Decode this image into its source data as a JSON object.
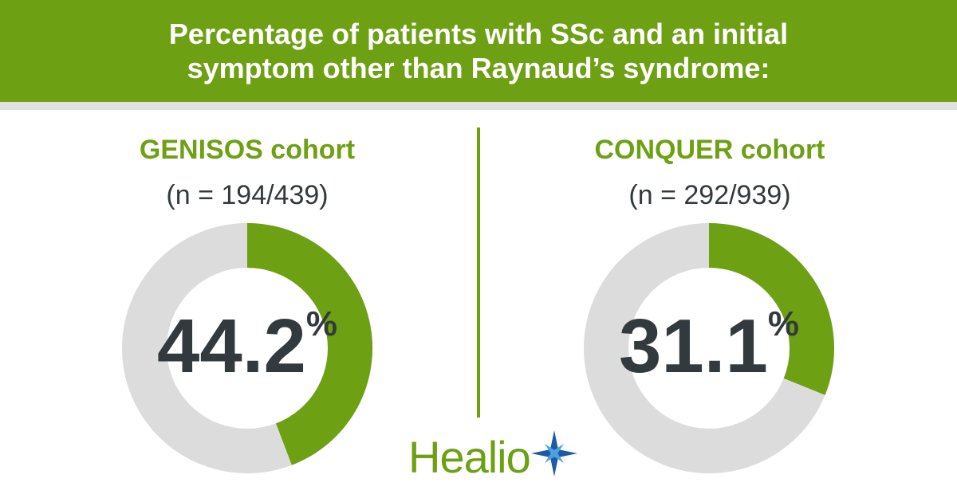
{
  "header": {
    "line1": "Percentage of patients with SSc and an initial",
    "line2": "symptom other than Raynaud’s syndrome:"
  },
  "chart_data": [
    {
      "type": "pie",
      "title": "GENISOS cohort",
      "subtitle": "(n = 194/439)",
      "value": 44.2,
      "value_label": "44.2",
      "unit": "%",
      "colors": {
        "value": "#6ea014",
        "remainder": "#dcdcdc"
      }
    },
    {
      "type": "pie",
      "title": "CONQUER cohort",
      "subtitle": "(n = 292/939)",
      "value": 31.1,
      "value_label": "31.1",
      "unit": "%",
      "colors": {
        "value": "#6ea014",
        "remainder": "#dcdcdc"
      }
    }
  ],
  "logo": {
    "text": "Healio",
    "icon": "star-burst-icon",
    "star_colors": [
      "#1f5aa6",
      "#4aa3df"
    ]
  }
}
